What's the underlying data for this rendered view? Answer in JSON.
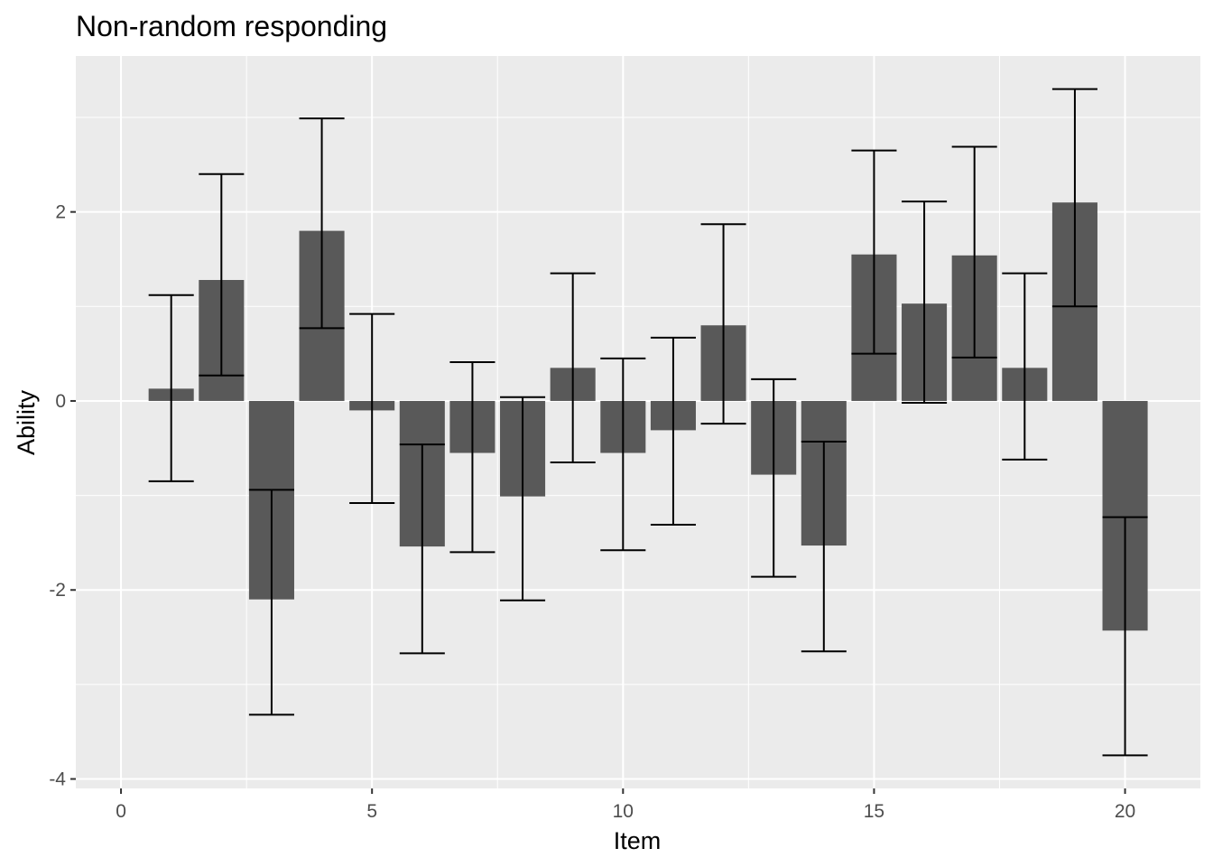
{
  "chart_data": {
    "type": "bar",
    "title": "Non-random responding",
    "xlabel": "Item",
    "ylabel": "Ability",
    "x": [
      1,
      2,
      3,
      4,
      5,
      6,
      7,
      8,
      9,
      10,
      11,
      12,
      13,
      14,
      15,
      16,
      17,
      18,
      19,
      20
    ],
    "values": [
      0.13,
      1.28,
      -2.1,
      1.8,
      -0.1,
      -1.54,
      -0.55,
      -1.01,
      0.35,
      -0.55,
      -0.31,
      0.8,
      -0.78,
      -1.53,
      1.55,
      1.03,
      1.54,
      0.35,
      2.1,
      -2.43
    ],
    "error_lower": [
      -0.85,
      0.27,
      -3.32,
      0.77,
      -1.08,
      -2.67,
      -1.6,
      -2.11,
      -0.65,
      -1.58,
      -1.31,
      -0.24,
      -1.86,
      -2.65,
      0.5,
      -0.02,
      0.46,
      -0.62,
      1.0,
      -3.75
    ],
    "error_upper": [
      1.12,
      2.4,
      -0.94,
      2.99,
      0.92,
      -0.46,
      0.41,
      0.04,
      1.35,
      0.45,
      0.67,
      1.87,
      0.23,
      -0.43,
      2.65,
      2.11,
      2.69,
      1.35,
      3.3,
      -1.23
    ],
    "xlim": [
      -0.9,
      21.5
    ],
    "ylim": [
      -4.1,
      3.65
    ],
    "xticks": [
      0,
      5,
      10,
      15,
      20
    ],
    "yticks": [
      -4,
      -2,
      0,
      2
    ],
    "grid": true,
    "colors": {
      "panel": "#ebebeb",
      "grid": "#ffffff",
      "bar": "#595959",
      "errorbar": "#000000"
    }
  }
}
